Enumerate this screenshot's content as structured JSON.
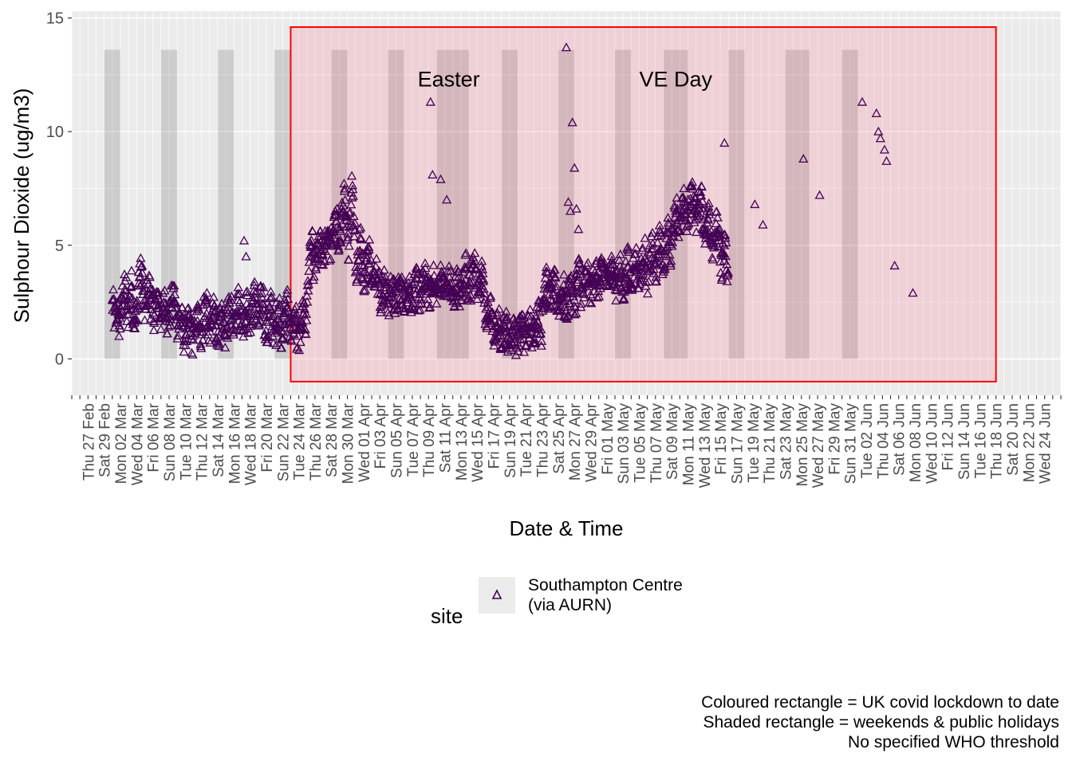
{
  "chart_data": {
    "type": "scatter",
    "ylabel": "Sulphour Dioxide (ug/m3)",
    "xlabel": "Date & Time",
    "ylim": [
      -1.6,
      15.3
    ],
    "y_ticks": [
      0,
      5,
      10,
      15
    ],
    "x_start_date": "2020-02-25",
    "x_end_date": "2020-06-26",
    "x_tick_labels": [
      "Thu 27 Feb",
      "Sat 29 Feb",
      "Mon 02 Mar",
      "Wed 04 Mar",
      "Fri 06 Mar",
      "Sun 08 Mar",
      "Tue 10 Mar",
      "Thu 12 Mar",
      "Sat 14 Mar",
      "Mon 16 Mar",
      "Wed 18 Mar",
      "Fri 20 Mar",
      "Sun 22 Mar",
      "Tue 24 Mar",
      "Thu 26 Mar",
      "Sat 28 Mar",
      "Mon 30 Mar",
      "Wed 01 Apr",
      "Fri 03 Apr",
      "Sun 05 Apr",
      "Tue 07 Apr",
      "Thu 09 Apr",
      "Sat 11 Apr",
      "Mon 13 Apr",
      "Wed 15 Apr",
      "Fri 17 Apr",
      "Sun 19 Apr",
      "Tue 21 Apr",
      "Thu 23 Apr",
      "Sat 25 Apr",
      "Mon 27 Apr",
      "Wed 29 Apr",
      "Fri 01 May",
      "Sun 03 May",
      "Tue 05 May",
      "Thu 07 May",
      "Sat 09 May",
      "Mon 11 May",
      "Wed 13 May",
      "Fri 15 May",
      "Sun 17 May",
      "Tue 19 May",
      "Thu 21 May",
      "Sat 23 May",
      "Mon 25 May",
      "Wed 27 May",
      "Fri 29 May",
      "Sun 31 May",
      "Tue 02 Jun",
      "Thu 04 Jun",
      "Sat 06 Jun",
      "Mon 08 Jun",
      "Wed 10 Jun",
      "Fri 12 Jun",
      "Sun 14 Jun",
      "Tue 16 Jun",
      "Thu 18 Jun",
      "Sat 20 Jun",
      "Mon 22 Jun",
      "Wed 24 Jun"
    ],
    "lockdown_period": {
      "start": "2020-03-23",
      "end": "2020-06-18",
      "y_range": [
        -1,
        14.6
      ],
      "color": "#ff0000"
    },
    "shaded_periods": [
      {
        "start": "2020-02-29",
        "end": "2020-03-01"
      },
      {
        "start": "2020-03-07",
        "end": "2020-03-08"
      },
      {
        "start": "2020-03-14",
        "end": "2020-03-15"
      },
      {
        "start": "2020-03-21",
        "end": "2020-03-22"
      },
      {
        "start": "2020-03-28",
        "end": "2020-03-29"
      },
      {
        "start": "2020-04-04",
        "end": "2020-04-05"
      },
      {
        "start": "2020-04-10",
        "end": "2020-04-13"
      },
      {
        "start": "2020-04-18",
        "end": "2020-04-19"
      },
      {
        "start": "2020-04-25",
        "end": "2020-04-26"
      },
      {
        "start": "2020-05-02",
        "end": "2020-05-03"
      },
      {
        "start": "2020-05-08",
        "end": "2020-05-10"
      },
      {
        "start": "2020-05-16",
        "end": "2020-05-17"
      },
      {
        "start": "2020-05-23",
        "end": "2020-05-25"
      },
      {
        "start": "2020-05-30",
        "end": "2020-05-31"
      }
    ],
    "shaded_y_range": [
      0,
      13.6
    ],
    "annotations": [
      {
        "text": "Easter",
        "date": "2020-04-11 12:00",
        "y": 12.3
      },
      {
        "text": "VE Day",
        "date": "2020-05-09 12:00",
        "y": 12.3
      }
    ],
    "series": [
      {
        "name": "Southampton Centre (via AURN)",
        "marker": "triangle-open",
        "color": "#440154",
        "x_start_date": "2020-03-01",
        "points_per_day": 4,
        "values": [
          2.4,
          1.8,
          2.1,
          1.5,
          2.2,
          2.8,
          3.1,
          1.9,
          2.5,
          3.3,
          2.0,
          1.7,
          2.3,
          3.6,
          3.9,
          2.6,
          2.1,
          2.9,
          3.2,
          2.4,
          1.9,
          2.4,
          2.7,
          2.0,
          1.8,
          2.5,
          2.3,
          1.6,
          2.0,
          2.6,
          2.8,
          2.2,
          1.5,
          1.8,
          1.7,
          0.9,
          1.2,
          1.6,
          1.4,
          0.8,
          1.1,
          1.7,
          1.9,
          1.0,
          1.4,
          2.2,
          2.5,
          1.3,
          1.3,
          1.9,
          2.1,
          1.2,
          1.2,
          1.6,
          1.8,
          1.1,
          1.5,
          2.1,
          2.3,
          1.6,
          1.8,
          2.4,
          2.6,
          1.9,
          1.6,
          2.2,
          2.4,
          1.7,
          1.7,
          2.5,
          2.9,
          2.0,
          1.6,
          2.6,
          2.7,
          1.5,
          1.1,
          2.0,
          2.4,
          1.3,
          1.2,
          1.9,
          2.3,
          1.1,
          1.4,
          2.1,
          2.5,
          1.6,
          1.2,
          1.6,
          1.8,
          0.8,
          1.0,
          1.8,
          2.3,
          1.4,
          3.0,
          4.5,
          5.0,
          4.1,
          4.2,
          4.8,
          5.1,
          4.6,
          4.6,
          5.3,
          5.6,
          4.9,
          5.2,
          5.8,
          6.0,
          5.3,
          5.4,
          6.3,
          7.1,
          5.8,
          5.0,
          6.4,
          7.6,
          6.0,
          3.8,
          4.6,
          5.2,
          4.1,
          3.6,
          4.2,
          4.8,
          3.9,
          3.2,
          3.8,
          4.1,
          3.4,
          2.6,
          3.1,
          3.4,
          2.7,
          2.5,
          3.0,
          3.3,
          2.6,
          2.6,
          3.0,
          3.2,
          2.5,
          2.7,
          3.1,
          3.3,
          2.6,
          2.8,
          3.2,
          3.4,
          2.7,
          2.9,
          3.3,
          3.6,
          3.0,
          2.8,
          3.3,
          3.5,
          2.9,
          3.0,
          3.4,
          3.7,
          3.1,
          2.9,
          3.3,
          3.5,
          2.9,
          2.6,
          3.1,
          3.4,
          2.8,
          3.0,
          3.6,
          4.1,
          3.2,
          3.1,
          3.9,
          4.5,
          3.4,
          2.9,
          3.4,
          3.8,
          3.0,
          1.6,
          1.9,
          2.2,
          1.5,
          1.1,
          1.4,
          1.6,
          1.0,
          1.0,
          1.3,
          1.5,
          0.9,
          0.9,
          1.2,
          1.4,
          0.8,
          0.9,
          1.3,
          1.6,
          0.9,
          1.0,
          1.5,
          1.8,
          1.1,
          1.3,
          1.7,
          2.0,
          1.2,
          2.6,
          3.1,
          3.4,
          2.8,
          2.7,
          3.1,
          3.3,
          2.6,
          2.4,
          2.8,
          3.1,
          2.3,
          2.3,
          3.0,
          3.4,
          2.5,
          2.6,
          3.5,
          3.9,
          2.9,
          2.9,
          3.5,
          3.7,
          3.1,
          3.0,
          3.6,
          3.9,
          3.2,
          3.3,
          3.8,
          4.1,
          3.5,
          3.4,
          3.9,
          4.2,
          3.6,
          3.2,
          3.7,
          4.0,
          3.3,
          3.1,
          3.8,
          4.3,
          3.5,
          3.6,
          4.1,
          4.4,
          3.7,
          3.6,
          4.3,
          4.7,
          3.8,
          3.5,
          4.4,
          4.9,
          4.0,
          3.9,
          4.8,
          5.3,
          4.2,
          4.4,
          5.1,
          5.6,
          4.6,
          5.6,
          6.2,
          6.6,
          5.8,
          6.0,
          6.5,
          6.9,
          6.1,
          6.4,
          7.0,
          7.4,
          6.6,
          6.2,
          6.8,
          7.1,
          6.3,
          5.5,
          6.0,
          6.4,
          5.6,
          5.0,
          5.6,
          5.9,
          5.1,
          4.1,
          4.6,
          4.9,
          3.7
        ],
        "outliers": [
          {
            "date": "2020-03-17 06:00",
            "value": 5.2
          },
          {
            "date": "2020-03-17 12:00",
            "value": 4.5
          },
          {
            "date": "2020-04-09 06:00",
            "value": 11.3
          },
          {
            "date": "2020-04-09 12:00",
            "value": 8.1
          },
          {
            "date": "2020-04-10 12:00",
            "value": 7.9
          },
          {
            "date": "2020-04-11 06:00",
            "value": 7.0
          },
          {
            "date": "2020-04-26 00:00",
            "value": 13.7
          },
          {
            "date": "2020-04-26 06:00",
            "value": 6.9
          },
          {
            "date": "2020-04-26 12:00",
            "value": 6.5
          },
          {
            "date": "2020-04-26 18:00",
            "value": 10.4
          },
          {
            "date": "2020-04-27 00:00",
            "value": 8.4
          },
          {
            "date": "2020-04-27 06:00",
            "value": 6.6
          },
          {
            "date": "2020-04-27 12:00",
            "value": 5.7
          },
          {
            "date": "2020-05-15 12:00",
            "value": 9.5
          },
          {
            "date": "2020-05-19 06:00",
            "value": 6.8
          },
          {
            "date": "2020-05-20 06:00",
            "value": 5.9
          },
          {
            "date": "2020-05-25 06:00",
            "value": 8.8
          },
          {
            "date": "2020-05-27 06:00",
            "value": 7.2
          },
          {
            "date": "2020-06-01 12:00",
            "value": 11.3
          },
          {
            "date": "2020-06-03 06:00",
            "value": 10.8
          },
          {
            "date": "2020-06-03 12:00",
            "value": 10.0
          },
          {
            "date": "2020-06-03 18:00",
            "value": 9.7
          },
          {
            "date": "2020-06-04 06:00",
            "value": 9.2
          },
          {
            "date": "2020-06-04 12:00",
            "value": 8.7
          },
          {
            "date": "2020-06-05 12:00",
            "value": 4.1
          },
          {
            "date": "2020-06-07 18:00",
            "value": 2.9
          }
        ]
      }
    ],
    "grid": true
  },
  "legend": {
    "title": "site",
    "entries": [
      {
        "line1": "Southampton Centre",
        "line2": "(via AURN)"
      }
    ]
  },
  "caption": {
    "line1": "Coloured rectangle = UK covid lockdown to date",
    "line2": "Shaded rectangle = weekends & public holidays",
    "line3": "No specified WHO threshold"
  }
}
